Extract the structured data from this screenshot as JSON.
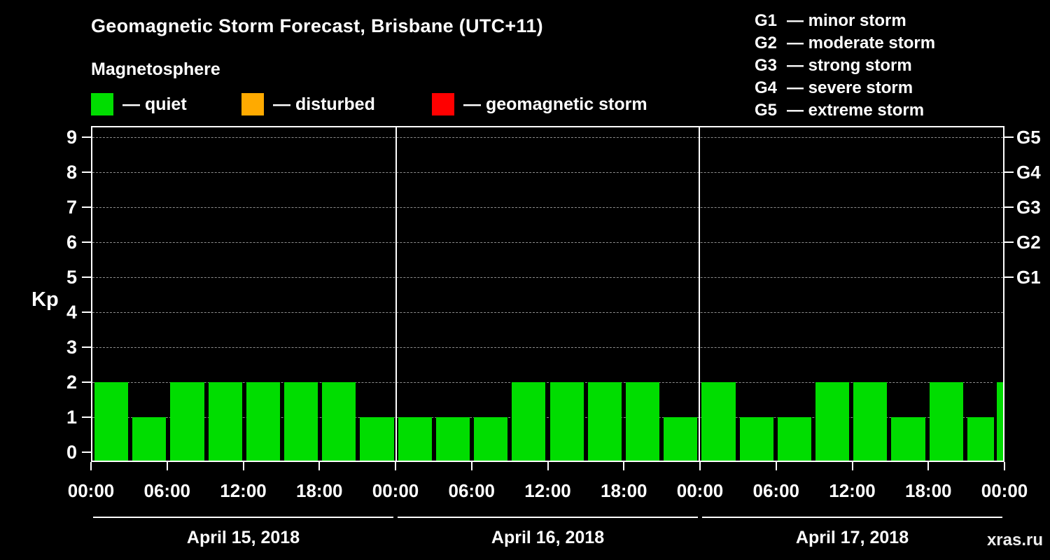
{
  "watermark": "xras.ru",
  "chart_data": {
    "type": "bar",
    "title": "Geomagnetic Storm Forecast, Brisbane (UTC+11)",
    "subtitle": "Magnetosphere",
    "ylabel": "Kp",
    "ylim": [
      0,
      9
    ],
    "y_ticks": [
      0,
      1,
      2,
      3,
      4,
      5,
      6,
      7,
      8,
      9
    ],
    "grid": "dashed-horizontal",
    "interval_hours": 3,
    "legend": [
      {
        "name": "quiet",
        "label": "— quiet",
        "color": "#00dd00"
      },
      {
        "name": "disturbed",
        "label": "— disturbed",
        "color": "#ffaa00"
      },
      {
        "name": "storm",
        "label": "— geomagnetic storm",
        "color": "#ff0000"
      }
    ],
    "storm_scale": [
      {
        "code": "G1",
        "label": "— minor storm"
      },
      {
        "code": "G2",
        "label": "— moderate storm"
      },
      {
        "code": "G3",
        "label": "— strong storm"
      },
      {
        "code": "G4",
        "label": "— severe storm"
      },
      {
        "code": "G5",
        "label": "— extreme storm"
      }
    ],
    "right_axis": [
      {
        "label": "G1",
        "kp": 5
      },
      {
        "label": "G2",
        "kp": 6
      },
      {
        "label": "G3",
        "kp": 7
      },
      {
        "label": "G4",
        "kp": 8
      },
      {
        "label": "G5",
        "kp": 9
      }
    ],
    "x_tick_labels": [
      "00:00",
      "06:00",
      "12:00",
      "18:00",
      "00:00",
      "06:00",
      "12:00",
      "18:00",
      "00:00",
      "06:00",
      "12:00",
      "18:00",
      "00:00"
    ],
    "days": [
      {
        "date": "April 15, 2018",
        "values": [
          2,
          1,
          2,
          2,
          2,
          2,
          2,
          1
        ]
      },
      {
        "date": "April 16, 2018",
        "values": [
          1,
          1,
          1,
          2,
          2,
          2,
          2,
          1
        ]
      },
      {
        "date": "April 17, 2018",
        "values": [
          2,
          1,
          1,
          2,
          2,
          1,
          2,
          1
        ]
      }
    ],
    "partial_next_kp": 2,
    "colors": {
      "background": "#000000",
      "axis": "#ffffff",
      "bar": "#00dd00",
      "grid": "#8c8c8c"
    }
  }
}
